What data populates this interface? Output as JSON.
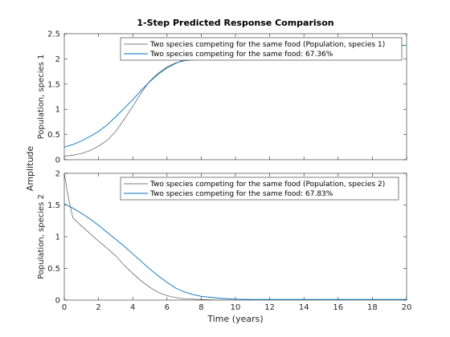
{
  "chart_data": {
    "type": "line",
    "title": "1-Step Predicted Response Comparison",
    "xlabel": "Time (years)",
    "ylabel_shared": "Amplitude",
    "xlim": [
      0,
      20
    ],
    "xticks": [
      0,
      2,
      4,
      6,
      8,
      10,
      12,
      14,
      16,
      18,
      20
    ],
    "grid": false,
    "legend_location": "top-right",
    "panels": [
      {
        "ylabel": "Population, species 1",
        "ylim": [
          0,
          2.5
        ],
        "yticks": [
          0,
          0.5,
          1,
          1.5,
          2,
          2.5
        ],
        "series": [
          {
            "name": "Two species competing for the same food (Population, species 1)",
            "color": "#555555",
            "x": [
              0,
              0.5,
              1,
              1.5,
              2,
              2.5,
              3,
              3.5,
              4,
              4.5,
              5,
              5.5,
              6,
              6.5,
              7,
              7.5
            ],
            "y": [
              0.07,
              0.09,
              0.12,
              0.18,
              0.27,
              0.38,
              0.56,
              0.8,
              1.06,
              1.33,
              1.56,
              1.72,
              1.84,
              1.92,
              1.96,
              1.98
            ]
          },
          {
            "name": "Two species competing for the same food: 67.36%",
            "color": "#0072BD",
            "x": [
              0,
              0.5,
              1,
              1.5,
              2,
              2.5,
              3,
              3.5,
              4,
              4.5,
              5,
              5.5,
              6,
              6.5,
              7,
              7.5,
              8,
              9,
              10,
              12,
              14,
              16,
              18,
              20
            ],
            "y": [
              0.25,
              0.3,
              0.37,
              0.46,
              0.56,
              0.69,
              0.85,
              1.02,
              1.19,
              1.38,
              1.55,
              1.7,
              1.82,
              1.91,
              1.98,
              2.02,
              2.06,
              2.11,
              2.15,
              2.2,
              2.23,
              2.25,
              2.26,
              2.27
            ]
          }
        ]
      },
      {
        "ylabel": "Population, species 2",
        "ylim": [
          0,
          2
        ],
        "yticks": [
          0,
          0.5,
          1,
          1.5,
          2
        ],
        "series": [
          {
            "name": "Two species competing for the same food (Population, species 2)",
            "color": "#555555",
            "x": [
              0,
              0.25,
              0.5,
              1,
              1.5,
              2,
              2.5,
              3,
              3.5,
              4,
              4.5,
              5,
              5.5,
              6,
              6.5,
              7,
              8,
              9,
              10
            ],
            "y": [
              2.0,
              1.6,
              1.3,
              1.17,
              1.05,
              0.93,
              0.82,
              0.7,
              0.55,
              0.42,
              0.3,
              0.2,
              0.12,
              0.07,
              0.04,
              0.02,
              0.01,
              0.0,
              0.0
            ]
          },
          {
            "name": "Two species competing for the same food: 67.83%",
            "color": "#0072BD",
            "x": [
              0,
              0.5,
              1,
              1.5,
              2,
              2.5,
              3,
              3.5,
              4,
              4.5,
              5,
              5.5,
              6,
              6.5,
              7,
              7.5,
              8,
              9,
              10,
              11,
              12,
              14,
              16,
              18,
              20
            ],
            "y": [
              1.52,
              1.45,
              1.37,
              1.28,
              1.18,
              1.07,
              0.96,
              0.85,
              0.73,
              0.61,
              0.49,
              0.38,
              0.28,
              0.19,
              0.13,
              0.09,
              0.06,
              0.03,
              0.015,
              0.01,
              0.01,
              0.01,
              0.01,
              0.01,
              0.01
            ]
          }
        ]
      }
    ]
  }
}
